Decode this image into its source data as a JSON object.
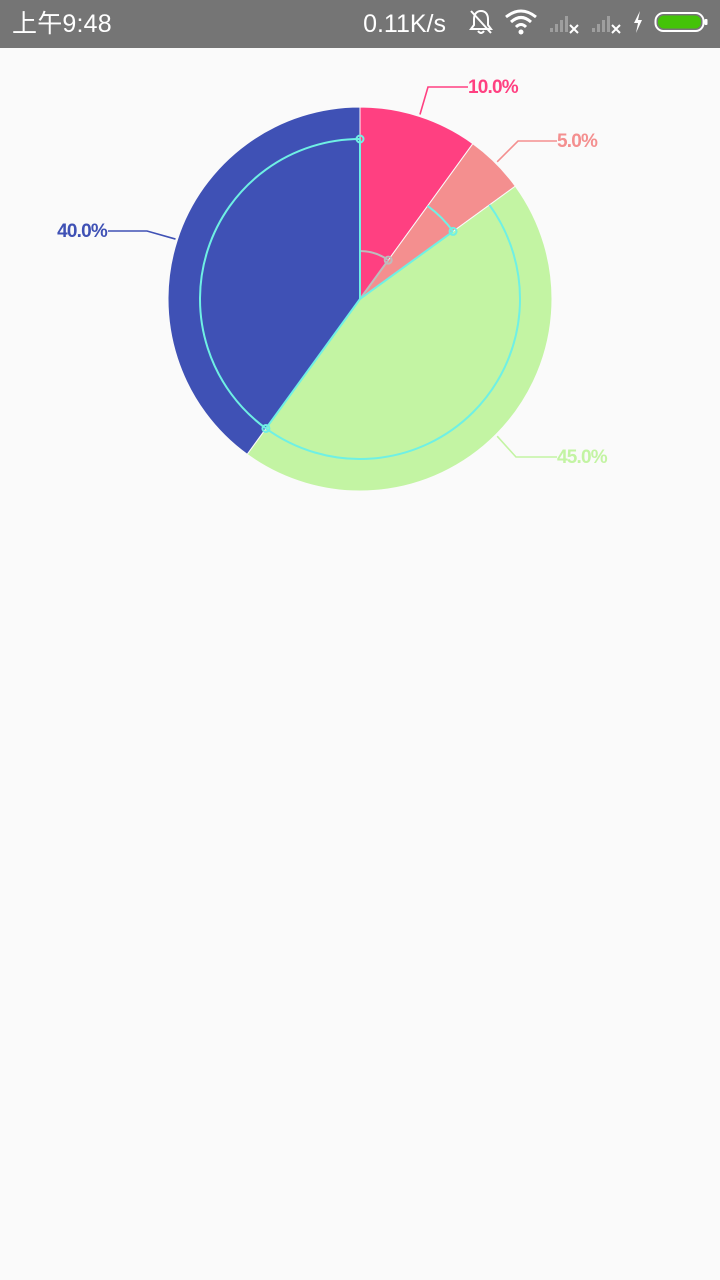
{
  "status_bar": {
    "time": "上午9:48",
    "net_speed": "0.11K/s",
    "icons": [
      "bell-muted-icon",
      "wifi-icon",
      "signal-no-sim-icon",
      "signal-no-sim-icon",
      "charging-bolt-icon",
      "battery-icon"
    ],
    "battery_color": "#44c308"
  },
  "chart_data": {
    "type": "pie",
    "title": "",
    "values": [
      10.0,
      5.0,
      45.0,
      40.0
    ],
    "labels": [
      "10.0%",
      "5.0%",
      "45.0%",
      "40.0%"
    ],
    "colors": [
      "#ff4081",
      "#f48f8f",
      "#c3f4a3",
      "#3f51b5"
    ],
    "accent_line_color": "#6ff0e4",
    "start_angle_deg": -90,
    "direction": "clockwise",
    "legend": "none"
  }
}
